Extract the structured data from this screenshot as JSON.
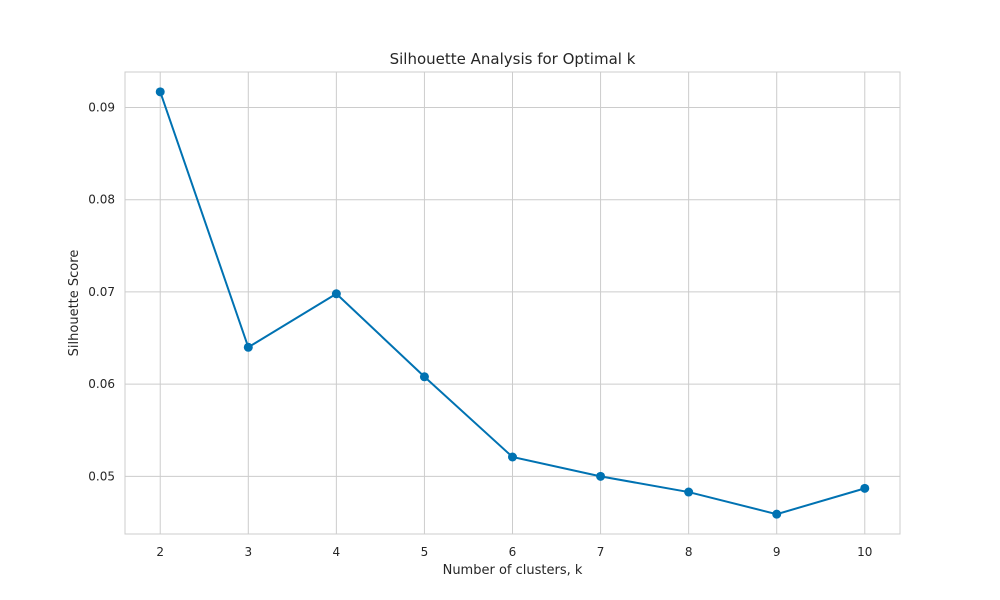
{
  "chart_data": {
    "type": "line",
    "title": "Silhouette Analysis for Optimal k",
    "xlabel": "Number of clusters, k",
    "ylabel": "Silhouette Score",
    "x": [
      2,
      3,
      4,
      5,
      6,
      7,
      8,
      9,
      10
    ],
    "series": [
      {
        "values": [
          0.0917,
          0.064,
          0.0698,
          0.0608,
          0.0521,
          0.05,
          0.0483,
          0.0459,
          0.0487
        ],
        "color": "#0072b2",
        "marker": "circle"
      }
    ],
    "xticks": [
      2,
      3,
      4,
      5,
      6,
      7,
      8,
      9,
      10
    ],
    "yticks": [
      "0.05",
      "0.06",
      "0.07",
      "0.08",
      "0.09"
    ],
    "xlim": [
      1.6,
      10.4
    ],
    "ylim": [
      0.04375,
      0.09385
    ],
    "grid": true,
    "legend": "none"
  }
}
